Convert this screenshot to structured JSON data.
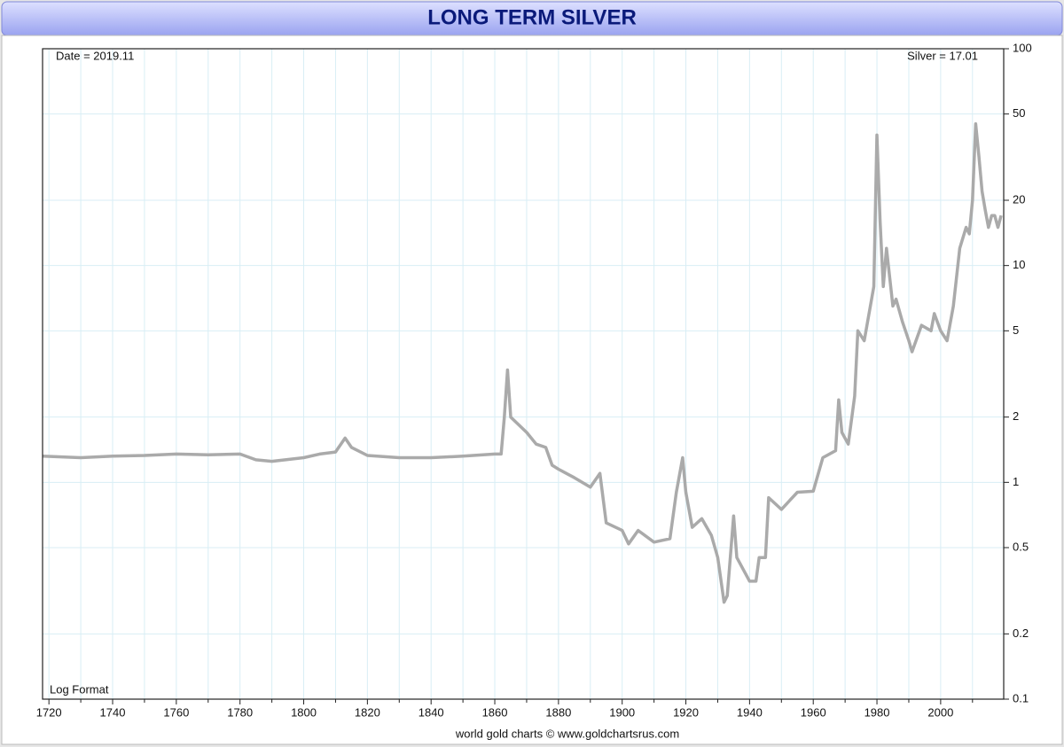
{
  "chart_data": {
    "type": "line",
    "title": "LONG TERM SILVER",
    "annotations": [
      "Date = 2019.11",
      "Silver = 17.01",
      "Log Format"
    ],
    "footer": "world gold charts © www.goldchartsrus.com",
    "log_y": true,
    "grid": true,
    "y_axis_side": "right",
    "xlim": [
      1718,
      2019.8
    ],
    "ylim": [
      0.1,
      100
    ],
    "xticks": [
      1720,
      1740,
      1760,
      1780,
      1800,
      1820,
      1840,
      1860,
      1880,
      1900,
      1920,
      1940,
      1960,
      1980,
      2000
    ],
    "x_minor_ticks": [
      1730,
      1750,
      1770,
      1790,
      1810,
      1830,
      1850,
      1870,
      1890,
      1910,
      1930,
      1950,
      1970,
      1990,
      2010
    ],
    "yticks": [
      0.1,
      0.2,
      0.5,
      1,
      2,
      5,
      10,
      20,
      50,
      100
    ],
    "series": [
      {
        "name": "Silver",
        "color": "#aaaaaa",
        "x": [
          1718,
          1730,
          1740,
          1750,
          1760,
          1770,
          1780,
          1785,
          1790,
          1800,
          1805,
          1810,
          1813,
          1815,
          1820,
          1830,
          1840,
          1850,
          1860,
          1862,
          1863,
          1864,
          1865,
          1870,
          1873,
          1876,
          1878,
          1880,
          1885,
          1890,
          1893,
          1895,
          1900,
          1902,
          1905,
          1910,
          1915,
          1917,
          1919,
          1920,
          1922,
          1925,
          1928,
          1930,
          1932,
          1933,
          1935,
          1936,
          1940,
          1942,
          1943,
          1945,
          1946,
          1950,
          1955,
          1960,
          1963,
          1967,
          1968,
          1969,
          1971,
          1973,
          1974,
          1976,
          1979,
          1980,
          1981,
          1982,
          1983,
          1985,
          1986,
          1988,
          1990,
          1991,
          1994,
          1997,
          1998,
          2000,
          2002,
          2004,
          2006,
          2008,
          2009,
          2010,
          2011,
          2012,
          2013,
          2014,
          2015,
          2016,
          2017,
          2018,
          2019
        ],
        "values": [
          1.32,
          1.3,
          1.32,
          1.33,
          1.35,
          1.34,
          1.35,
          1.27,
          1.25,
          1.3,
          1.35,
          1.38,
          1.6,
          1.45,
          1.33,
          1.3,
          1.3,
          1.32,
          1.35,
          1.35,
          2.0,
          3.3,
          2.0,
          1.7,
          1.5,
          1.45,
          1.2,
          1.15,
          1.05,
          0.95,
          1.1,
          0.65,
          0.6,
          0.52,
          0.6,
          0.53,
          0.55,
          0.9,
          1.3,
          0.9,
          0.62,
          0.68,
          0.57,
          0.45,
          0.28,
          0.3,
          0.7,
          0.45,
          0.35,
          0.35,
          0.45,
          0.45,
          0.85,
          0.75,
          0.9,
          0.91,
          1.3,
          1.4,
          2.4,
          1.7,
          1.5,
          2.5,
          5.0,
          4.5,
          8,
          40,
          16,
          8,
          12,
          6.5,
          7,
          5.5,
          4.5,
          4,
          5.3,
          5,
          6,
          5,
          4.5,
          6.5,
          12,
          15,
          14,
          20,
          45,
          32,
          22,
          18,
          15,
          17,
          17,
          15,
          17.01
        ]
      }
    ]
  }
}
